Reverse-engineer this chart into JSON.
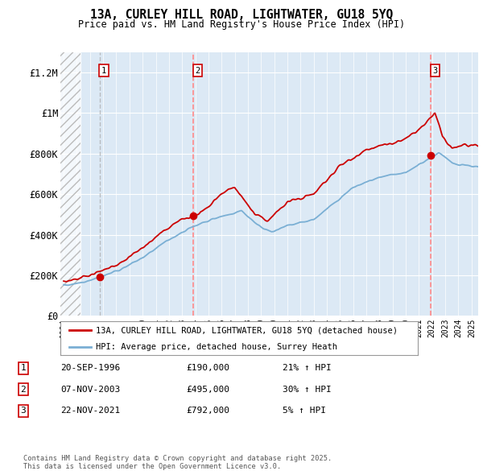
{
  "title": "13A, CURLEY HILL ROAD, LIGHTWATER, GU18 5YQ",
  "subtitle": "Price paid vs. HM Land Registry's House Price Index (HPI)",
  "legend_label_red": "13A, CURLEY HILL ROAD, LIGHTWATER, GU18 5YQ (detached house)",
  "legend_label_blue": "HPI: Average price, detached house, Surrey Heath",
  "sale_dates": [
    "20-SEP-1996",
    "07-NOV-2003",
    "22-NOV-2021"
  ],
  "sale_prices": [
    190000,
    495000,
    792000
  ],
  "sale_hpi_pct": [
    "21%",
    "30%",
    "5%"
  ],
  "sale_years": [
    1996.72,
    2003.85,
    2021.89
  ],
  "footnote": "Contains HM Land Registry data © Crown copyright and database right 2025.\nThis data is licensed under the Open Government Licence v3.0.",
  "background_color": "#ffffff",
  "plot_bg_color": "#dce9f5",
  "red_color": "#cc0000",
  "blue_color": "#7aafd4",
  "dashed_color_gray": "#aaaaaa",
  "dashed_color_red": "#ff8888",
  "ylim": [
    0,
    1300000
  ],
  "xlim_start": 1993.75,
  "xlim_end": 2025.5
}
